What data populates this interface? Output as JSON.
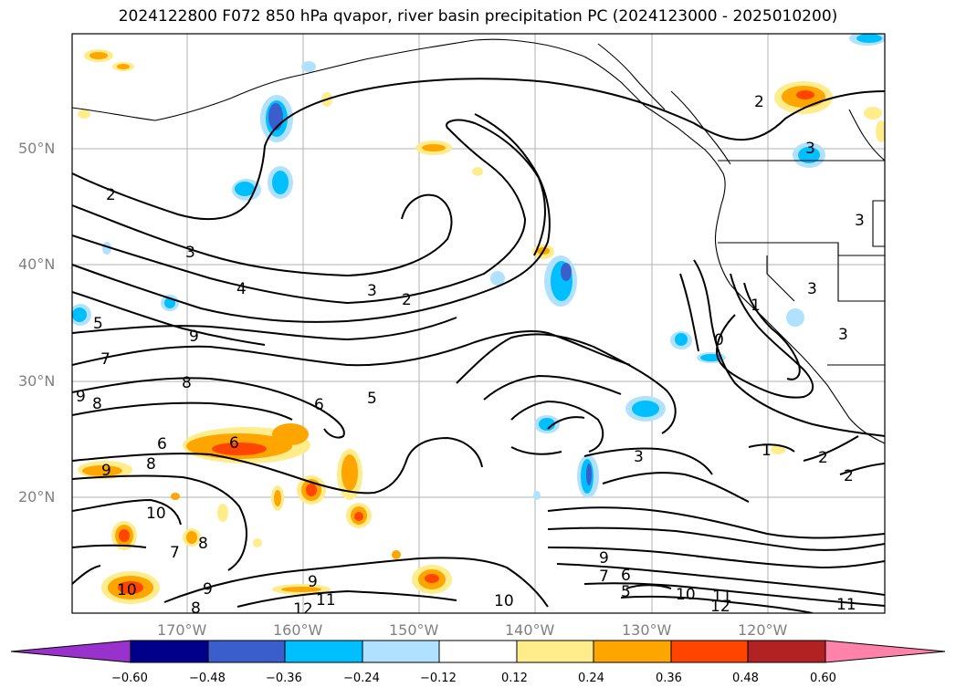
{
  "title": "2024122800 F072 850 hPa qvapor, river basin precipitation PC (2024123000 - 2025010200)",
  "map": {
    "lat_labels": [
      "50°N",
      "40°N",
      "30°N",
      "20°N"
    ],
    "lon_labels": [
      "170°W",
      "160°W",
      "150°W",
      "140°W",
      "130°W",
      "120°W"
    ],
    "contour_labels": [
      "2",
      "3",
      "4",
      "5",
      "7",
      "9",
      "8",
      "9",
      "8",
      "6",
      "5",
      "3",
      "2",
      "6",
      "6",
      "9",
      "8",
      "10",
      "7",
      "8",
      "10",
      "9",
      "8",
      "12",
      "11",
      "9",
      "10",
      "7",
      "6",
      "5",
      "9",
      "10",
      "11",
      "12",
      "11",
      "3",
      "1",
      "2",
      "2",
      "3",
      "3",
      "3",
      "3",
      "1",
      "0",
      "2"
    ],
    "colors": {
      "contour": "#000000",
      "grid": "#b0b0b0",
      "coast": "#000000"
    }
  },
  "colorbar": {
    "ticks": [
      "−0.60",
      "−0.48",
      "−0.36",
      "−0.24",
      "−0.12",
      "0.12",
      "0.24",
      "0.36",
      "0.48",
      "0.60"
    ],
    "colors": [
      "#9932cc",
      "#00008b",
      "#3a5fcd",
      "#00bfff",
      "#b0e2ff",
      "#ffffff",
      "#ffec8b",
      "#ffa500",
      "#ff4500",
      "#b22222",
      "#ff82ab"
    ]
  }
}
